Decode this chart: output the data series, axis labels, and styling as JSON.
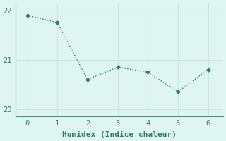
{
  "x": [
    0,
    1,
    2,
    3,
    4,
    5,
    6
  ],
  "y": [
    21.9,
    21.75,
    20.6,
    20.85,
    20.75,
    20.35,
    20.8
  ],
  "line_color": "#2d7d72",
  "marker": "D",
  "marker_size": 2.5,
  "xlabel": "Humidex (Indice chaleur)",
  "ylim": [
    19.85,
    22.15
  ],
  "xlim": [
    -0.4,
    6.5
  ],
  "yticks": [
    20,
    21,
    22
  ],
  "xticks": [
    0,
    1,
    2,
    3,
    4,
    5,
    6
  ],
  "bg_color": "#dff5f0",
  "grid_color": "#c8e8e0",
  "axis_color": "#4a9090",
  "font_color": "#2d7d72",
  "font_family": "monospace",
  "xlabel_fontsize": 8,
  "tick_fontsize": 7.5
}
